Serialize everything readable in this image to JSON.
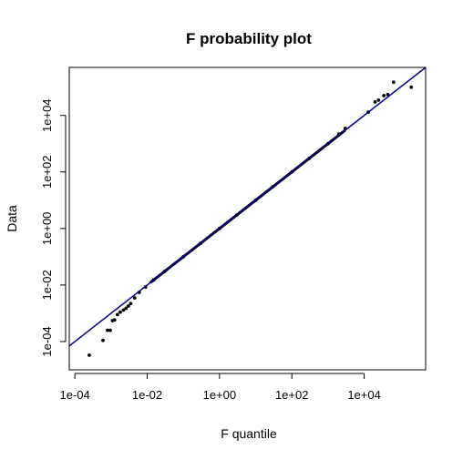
{
  "chart_data": {
    "type": "scatter",
    "title": "F probability plot",
    "xlabel": "F quantile",
    "ylabel": "Data",
    "x_scale": "log10",
    "y_scale": "log10",
    "xlim": [
      7e-05,
      500000
    ],
    "ylim": [
      1e-05,
      500000
    ],
    "x_ticks": [
      {
        "value": 0.0001,
        "label": "1e-04"
      },
      {
        "value": 0.01,
        "label": "1e-02"
      },
      {
        "value": 1,
        "label": "1e+00"
      },
      {
        "value": 100,
        "label": "1e+02"
      },
      {
        "value": 10000,
        "label": "1e+04"
      }
    ],
    "y_ticks": [
      {
        "value": 0.0001,
        "label": "1e-04"
      },
      {
        "value": 0.01,
        "label": "1e-02"
      },
      {
        "value": 1,
        "label": "1e+00"
      },
      {
        "value": 100,
        "label": "1e+02"
      },
      {
        "value": 10000,
        "label": "1e+04"
      }
    ],
    "grid": false,
    "reference_line": {
      "color": "#00008b",
      "slope": 1,
      "intercept": 0
    },
    "point_color": "#000000",
    "points": [
      {
        "x": 0.00025,
        "y": 3.3e-05
      },
      {
        "x": 0.0006,
        "y": 0.00011
      },
      {
        "x": 0.0008,
        "y": 0.00025
      },
      {
        "x": 0.00095,
        "y": 0.00025
      },
      {
        "x": 0.0011,
        "y": 0.00055
      },
      {
        "x": 0.00125,
        "y": 0.00058
      },
      {
        "x": 0.0015,
        "y": 0.0009
      },
      {
        "x": 0.0018,
        "y": 0.0011
      },
      {
        "x": 0.0022,
        "y": 0.0013
      },
      {
        "x": 0.0026,
        "y": 0.0015
      },
      {
        "x": 0.003,
        "y": 0.0018
      },
      {
        "x": 0.0035,
        "y": 0.0022
      },
      {
        "x": 0.0045,
        "y": 0.0035
      },
      {
        "x": 0.006,
        "y": 0.0055
      },
      {
        "x": 0.009,
        "y": 0.0085
      },
      {
        "x": 0.015,
        "y": 0.015
      },
      {
        "x": 0.03,
        "y": 0.03
      },
      {
        "x": 0.1,
        "y": 0.1
      },
      {
        "x": 0.3,
        "y": 0.3
      },
      {
        "x": 1,
        "y": 1
      },
      {
        "x": 3,
        "y": 3
      },
      {
        "x": 10,
        "y": 10
      },
      {
        "x": 30,
        "y": 30
      },
      {
        "x": 100,
        "y": 100
      },
      {
        "x": 300,
        "y": 300
      },
      {
        "x": 1000,
        "y": 1000
      },
      {
        "x": 2000,
        "y": 2200
      },
      {
        "x": 3000,
        "y": 3500
      },
      {
        "x": 13000,
        "y": 13000
      },
      {
        "x": 20000,
        "y": 30000
      },
      {
        "x": 25000,
        "y": 35000
      },
      {
        "x": 35000,
        "y": 50000
      },
      {
        "x": 45000,
        "y": 55000
      },
      {
        "x": 65000,
        "y": 150000
      },
      {
        "x": 200000,
        "y": 100000
      }
    ]
  }
}
